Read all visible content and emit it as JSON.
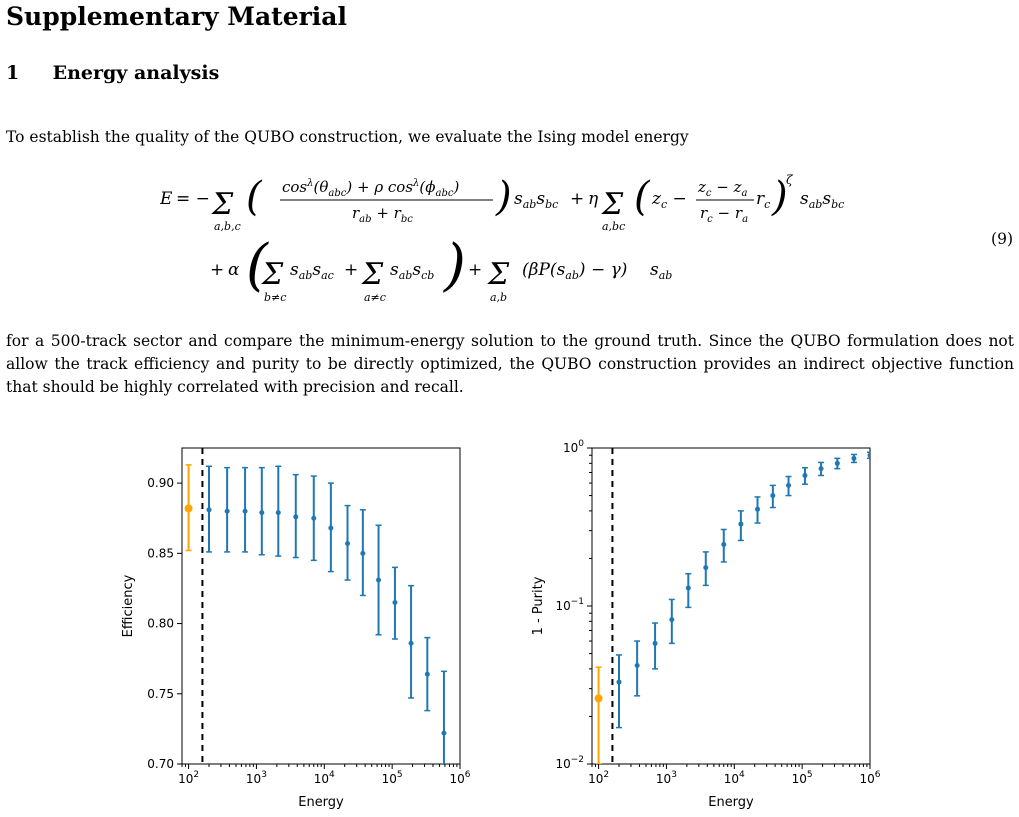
{
  "paper": {
    "title": "Supplementary Material",
    "section_number": "1",
    "section_title": "Energy analysis",
    "paragraph_1": "To establish the quality of the QUBO construction, we evaluate the Ising model energy",
    "equation_number": "(9)",
    "paragraph_2": "for a 500-track sector and compare the minimum-energy solution to the ground truth. Since the QUBO formulation does not allow the track efficiency and purity to be directly optimized, the QUBO construction provides an indirect objective function that should be highly correlated with precision and recall."
  },
  "chart_data": [
    {
      "type": "scatter",
      "xlabel": "Energy",
      "ylabel": "Efficiency",
      "xscale": "log",
      "xlim": [
        80,
        1000000
      ],
      "ylim": [
        0.7,
        0.925
      ],
      "x_ticks": [
        "10^2",
        "10^3",
        "10^4",
        "10^5",
        "10^6"
      ],
      "y_ticks": [
        "0.70",
        "0.75",
        "0.80",
        "0.85",
        "0.90"
      ],
      "vline_x": 160,
      "colors": {
        "main": "#1f77b4",
        "truth": "#ffa500"
      },
      "truth_point": {
        "x": 100,
        "y": 0.882,
        "yerr_low": 0.852,
        "yerr_high": 0.913
      },
      "series": [
        {
          "values": [
            {
              "x": 200,
              "y": 0.881,
              "lo": 0.851,
              "hi": 0.912
            },
            {
              "x": 370,
              "y": 0.88,
              "lo": 0.851,
              "hi": 0.911
            },
            {
              "x": 680,
              "y": 0.88,
              "lo": 0.851,
              "hi": 0.911
            },
            {
              "x": 1200,
              "y": 0.879,
              "lo": 0.849,
              "hi": 0.911
            },
            {
              "x": 2100,
              "y": 0.879,
              "lo": 0.848,
              "hi": 0.912
            },
            {
              "x": 3800,
              "y": 0.876,
              "lo": 0.847,
              "hi": 0.906
            },
            {
              "x": 7000,
              "y": 0.875,
              "lo": 0.845,
              "hi": 0.905
            },
            {
              "x": 12500,
              "y": 0.868,
              "lo": 0.837,
              "hi": 0.9
            },
            {
              "x": 22000,
              "y": 0.857,
              "lo": 0.831,
              "hi": 0.884
            },
            {
              "x": 37000,
              "y": 0.85,
              "lo": 0.82,
              "hi": 0.881
            },
            {
              "x": 63000,
              "y": 0.831,
              "lo": 0.792,
              "hi": 0.87
            },
            {
              "x": 110000,
              "y": 0.815,
              "lo": 0.789,
              "hi": 0.84
            },
            {
              "x": 190000,
              "y": 0.786,
              "lo": 0.747,
              "hi": 0.827
            },
            {
              "x": 330000,
              "y": 0.764,
              "lo": 0.738,
              "hi": 0.79
            },
            {
              "x": 580000,
              "y": 0.722,
              "lo": 0.7,
              "hi": 0.766
            }
          ]
        }
      ]
    },
    {
      "type": "scatter",
      "xlabel": "Energy",
      "ylabel": "1 - Purity",
      "xscale": "log",
      "yscale": "log",
      "xlim": [
        80,
        1000000
      ],
      "ylim": [
        0.01,
        1
      ],
      "x_ticks": [
        "10^2",
        "10^3",
        "10^4",
        "10^5",
        "10^6"
      ],
      "y_ticks": [
        "10^-2",
        "10^-1",
        "10^0"
      ],
      "vline_x": 160,
      "colors": {
        "main": "#1f77b4",
        "truth": "#ffa500"
      },
      "truth_point": {
        "x": 100,
        "y": 0.026,
        "yerr_low": 0.01,
        "yerr_high": 0.041
      },
      "series": [
        {
          "values": [
            {
              "x": 200,
              "y": 0.033,
              "lo": 0.017,
              "hi": 0.049
            },
            {
              "x": 370,
              "y": 0.042,
              "lo": 0.027,
              "hi": 0.06
            },
            {
              "x": 680,
              "y": 0.058,
              "lo": 0.04,
              "hi": 0.078
            },
            {
              "x": 1200,
              "y": 0.082,
              "lo": 0.058,
              "hi": 0.11
            },
            {
              "x": 2100,
              "y": 0.13,
              "lo": 0.098,
              "hi": 0.16
            },
            {
              "x": 3800,
              "y": 0.175,
              "lo": 0.135,
              "hi": 0.22
            },
            {
              "x": 7000,
              "y": 0.245,
              "lo": 0.19,
              "hi": 0.305
            },
            {
              "x": 12500,
              "y": 0.33,
              "lo": 0.26,
              "hi": 0.4
            },
            {
              "x": 22000,
              "y": 0.41,
              "lo": 0.335,
              "hi": 0.49
            },
            {
              "x": 37000,
              "y": 0.5,
              "lo": 0.42,
              "hi": 0.58
            },
            {
              "x": 63000,
              "y": 0.58,
              "lo": 0.5,
              "hi": 0.66
            },
            {
              "x": 110000,
              "y": 0.67,
              "lo": 0.59,
              "hi": 0.75
            },
            {
              "x": 190000,
              "y": 0.74,
              "lo": 0.67,
              "hi": 0.81
            },
            {
              "x": 330000,
              "y": 0.8,
              "lo": 0.74,
              "hi": 0.86
            },
            {
              "x": 580000,
              "y": 0.86,
              "lo": 0.81,
              "hi": 0.91
            },
            {
              "x": 1000000,
              "y": 0.9,
              "lo": 0.86,
              "hi": 0.94
            }
          ]
        }
      ]
    }
  ]
}
